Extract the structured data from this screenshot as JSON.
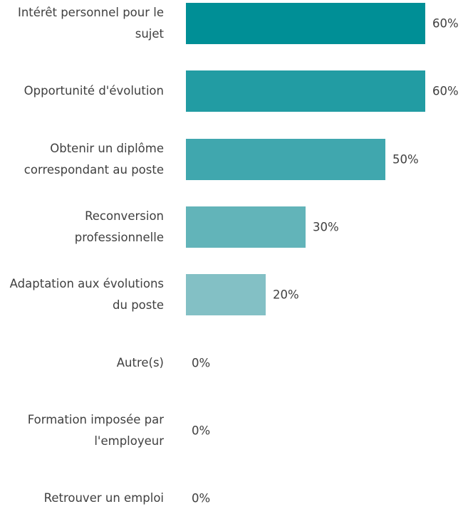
{
  "chart_data": {
    "type": "bar",
    "orientation": "horizontal",
    "categories": [
      "Intérêt personnel pour le sujet",
      "Opportunité d'évolution",
      "Obtenir un diplôme correspondant au poste",
      "Reconversion professionnelle",
      "Adaptation aux évolutions du poste",
      "Autre(s)",
      "Formation imposée par l'employeur",
      "Retrouver un emploi"
    ],
    "values": [
      60,
      60,
      50,
      30,
      20,
      0,
      0,
      0
    ],
    "value_labels": [
      "60%",
      "60%",
      "50%",
      "30%",
      "20%",
      "0%",
      "0%",
      "0%"
    ],
    "colors": [
      "#008f96",
      "#229ca3",
      "#40a7ae",
      "#62b4b9",
      "#83c0c5",
      "#a3d0d4",
      "#a3d0d4",
      "#a3d0d4"
    ]
  }
}
